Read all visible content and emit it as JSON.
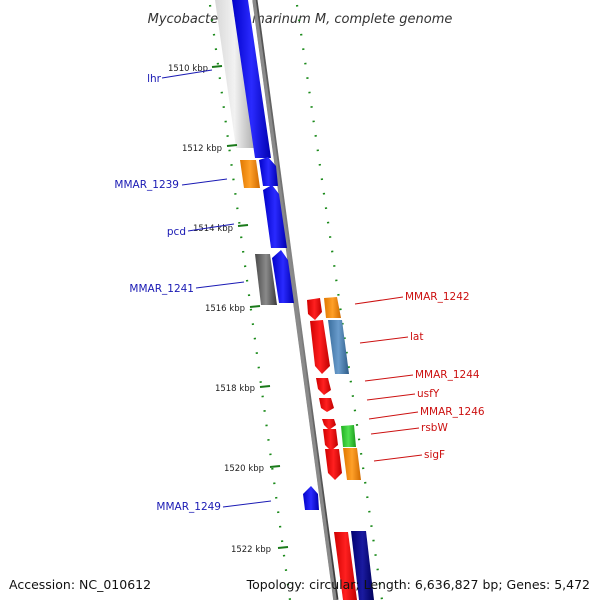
{
  "title": "Mycobacterium marinum M, complete genome",
  "accession": "Accession: NC_010612",
  "stats": "Topology: circular; Length: 6,636,827 bp; Genes: 5,472",
  "colors": {
    "forward_label": "#1a1ab4",
    "reverse_label": "#cc1010",
    "tick": "#1a7a1a"
  },
  "ticks": [
    "1510 kbp",
    "1512 kbp",
    "1514 kbp",
    "1516 kbp",
    "1518 kbp",
    "1520 kbp",
    "1522 kbp"
  ],
  "forward_labels": [
    "lhr",
    "MMAR_1239",
    "pcd",
    "MMAR_1241",
    "MMAR_1249"
  ],
  "reverse_labels": [
    "MMAR_1242",
    "lat",
    "MMAR_1244",
    "usfY",
    "MMAR_1246",
    "rsbW",
    "sigF"
  ]
}
